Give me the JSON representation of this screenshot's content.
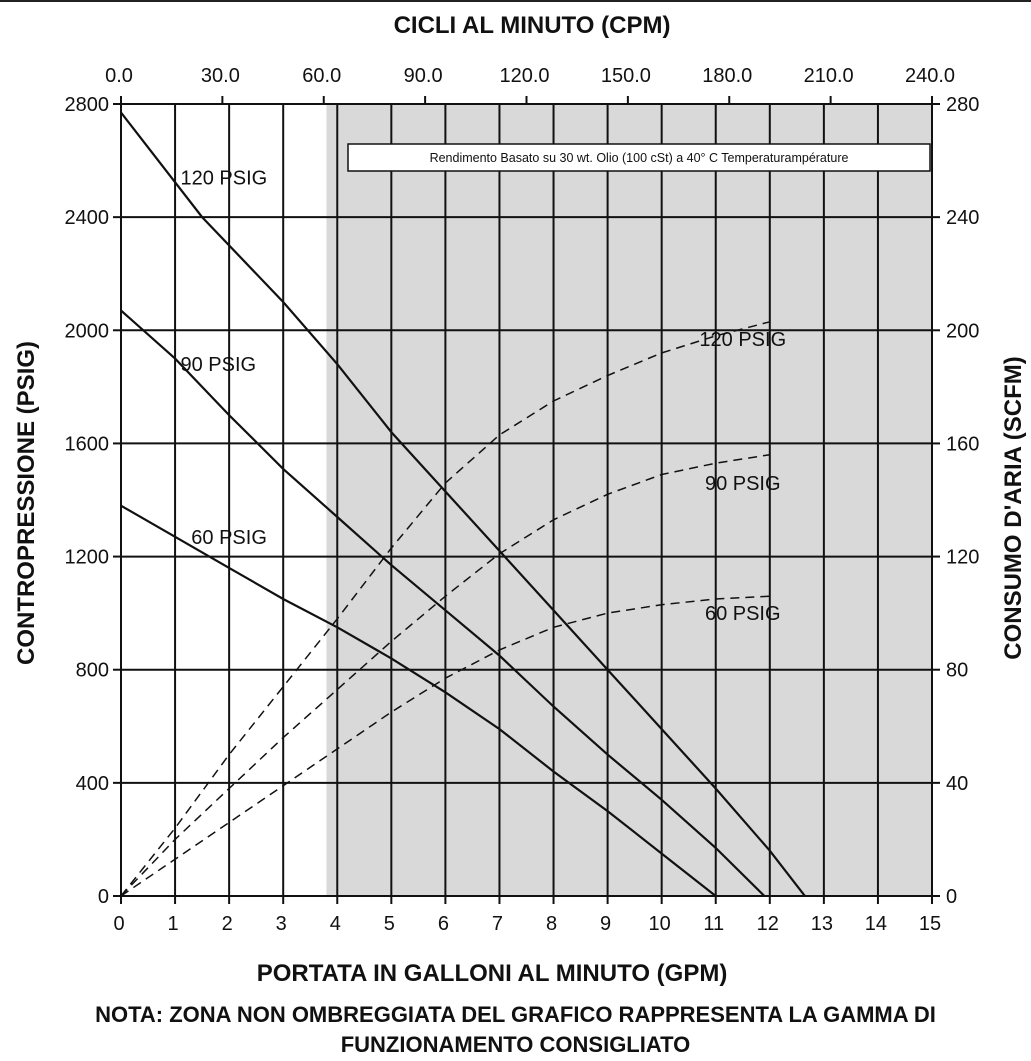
{
  "chart_data": {
    "type": "line",
    "top_axis_title": "CICLI AL MINUTO (CPM)",
    "top_axis_ticks": [
      "0.0",
      "30.0",
      "60.0",
      "90.0",
      "120.0",
      "150.0",
      "180.0",
      "210.0",
      "240.0"
    ],
    "xlabel": "PORTATA IN GALLONI AL MINUTO (GPM)",
    "ylabel": "CONTROPRESSIONE (PSIG)",
    "y2label": "CONSUMO D'ARIA (SCFM)",
    "xlim": [
      0,
      15
    ],
    "ylim": [
      0,
      2800
    ],
    "y2lim": [
      0,
      280
    ],
    "x_ticks": [
      0,
      1,
      2,
      3,
      4,
      5,
      6,
      7,
      8,
      9,
      10,
      11,
      12,
      13,
      14,
      15
    ],
    "y_ticks": [
      0,
      400,
      800,
      1200,
      1600,
      2000,
      2400,
      2800
    ],
    "y2_ticks": [
      0,
      40,
      80,
      120,
      160,
      200,
      240,
      280
    ],
    "grid": true,
    "shaded_region": {
      "x_from": 3.8,
      "x_to": 15,
      "color": "#d9d9d9"
    },
    "annotation": "Rendimento Basato su 30 wt. Olio (100 cSt) a 40° C Temperaturampérature",
    "pressure_series": [
      {
        "name": "120 PSIG",
        "label_at": [
          1.1,
          2540
        ],
        "points": [
          [
            0,
            2770
          ],
          [
            1.5,
            2400
          ],
          [
            3,
            2100
          ],
          [
            4,
            1880
          ],
          [
            5,
            1640
          ],
          [
            6,
            1430
          ],
          [
            7,
            1220
          ],
          [
            8,
            1010
          ],
          [
            9,
            800
          ],
          [
            10,
            590
          ],
          [
            11,
            380
          ],
          [
            12,
            160
          ],
          [
            12.65,
            0
          ]
        ]
      },
      {
        "name": "90 PSIG",
        "label_at": [
          1.1,
          1880
        ],
        "points": [
          [
            0,
            2070
          ],
          [
            1,
            1900
          ],
          [
            2,
            1700
          ],
          [
            3,
            1510
          ],
          [
            4,
            1340
          ],
          [
            5,
            1170
          ],
          [
            6,
            1010
          ],
          [
            7,
            850
          ],
          [
            8,
            670
          ],
          [
            9,
            500
          ],
          [
            10,
            340
          ],
          [
            11,
            170
          ],
          [
            11.9,
            0
          ]
        ]
      },
      {
        "name": "60 PSIG",
        "label_at": [
          1.3,
          1270
        ],
        "points": [
          [
            0,
            1380
          ],
          [
            1,
            1270
          ],
          [
            2,
            1160
          ],
          [
            3,
            1050
          ],
          [
            4,
            950
          ],
          [
            5,
            840
          ],
          [
            6,
            720
          ],
          [
            7,
            590
          ],
          [
            8,
            440
          ],
          [
            9,
            300
          ],
          [
            10,
            150
          ],
          [
            11,
            0
          ]
        ]
      }
    ],
    "air_series": [
      {
        "name": "120 PSIG",
        "label_at": [
          11.5,
          197
        ],
        "points": [
          [
            0,
            0
          ],
          [
            1,
            24
          ],
          [
            2,
            50
          ],
          [
            3,
            74
          ],
          [
            4,
            98
          ],
          [
            5,
            123
          ],
          [
            6,
            146
          ],
          [
            7,
            163
          ],
          [
            8,
            175
          ],
          [
            9,
            184
          ],
          [
            10,
            192
          ],
          [
            11,
            198
          ],
          [
            12,
            203
          ]
        ]
      },
      {
        "name": "90 PSIG",
        "label_at": [
          11.5,
          146
        ],
        "points": [
          [
            0,
            0
          ],
          [
            1,
            20
          ],
          [
            2,
            38
          ],
          [
            3,
            56
          ],
          [
            4,
            73
          ],
          [
            5,
            90
          ],
          [
            6,
            106
          ],
          [
            7,
            121
          ],
          [
            8,
            133
          ],
          [
            9,
            142
          ],
          [
            10,
            149
          ],
          [
            11,
            153
          ],
          [
            12,
            156
          ]
        ]
      },
      {
        "name": "60 PSIG",
        "label_at": [
          11.5,
          100
        ],
        "points": [
          [
            0,
            0
          ],
          [
            1,
            13
          ],
          [
            2,
            26
          ],
          [
            3,
            39
          ],
          [
            4,
            52
          ],
          [
            5,
            65
          ],
          [
            6,
            77
          ],
          [
            7,
            87
          ],
          [
            8,
            95
          ],
          [
            9,
            100
          ],
          [
            10,
            103
          ],
          [
            11,
            105
          ],
          [
            12,
            106
          ]
        ]
      }
    ]
  },
  "footnote_line1": "NOTA: ZONA NON OMBREGGIATA DEL GRAFICO RAPPRESENTA LA GAMMA DI",
  "footnote_line2": "FUNZIONAMENTO CONSIGLIATO"
}
